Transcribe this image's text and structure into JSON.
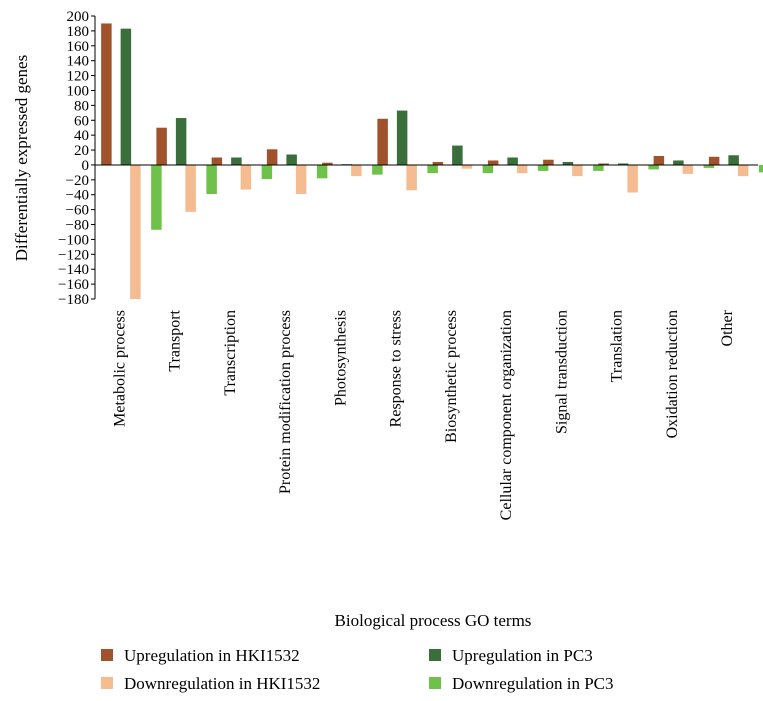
{
  "chart_data": {
    "type": "bar",
    "title": "",
    "xlabel": "Biological process GO terms",
    "ylabel": "Differentially expressed genes",
    "ylim": [
      -180,
      200
    ],
    "yticks": [
      200,
      180,
      160,
      140,
      120,
      100,
      80,
      60,
      40,
      20,
      0,
      -20,
      -40,
      -60,
      -80,
      -100,
      -120,
      -140,
      -160,
      -180
    ],
    "ytick_labels": [
      "200",
      "180",
      "160",
      "140",
      "120",
      "100",
      "80",
      "60",
      "40",
      "20",
      "0",
      "−20",
      "−40",
      "−60",
      "−80",
      "−100",
      "−120",
      "−140",
      "−160",
      "−180"
    ],
    "grid": false,
    "legend_position": "bottom",
    "categories": [
      "Metabolic process",
      "Transport",
      "Transcription",
      "Protein modification process",
      "Photosynthesis",
      "Response to stress",
      "Biosynthetic process",
      "Cellular component organization",
      "Signal transduction",
      "Translation",
      "Oxidation reduction",
      "Other"
    ],
    "series": [
      {
        "name": "Upregulation in HKI1532",
        "color": "#a0522d",
        "values": [
          190,
          50,
          10,
          21,
          3,
          62,
          4,
          6,
          7,
          2,
          12,
          11
        ]
      },
      {
        "name": "Downregulation in HKI1532",
        "color": "#f4bc90",
        "values": [
          -180,
          -63,
          -33,
          -39,
          -15,
          -34,
          -5,
          -11,
          -15,
          -37,
          -12,
          -15
        ]
      },
      {
        "name": "Upregulation in PC3",
        "color": "#3a6e3a",
        "values": [
          183,
          63,
          10,
          14,
          1,
          73,
          26,
          10,
          4,
          2,
          6,
          13
        ]
      },
      {
        "name": "Downregulation in PC3",
        "color": "#6ec24a",
        "values": [
          -87,
          -39,
          -19,
          -18,
          -13,
          -11,
          -11,
          -8,
          -8,
          -6,
          -4,
          -10
        ]
      }
    ]
  }
}
